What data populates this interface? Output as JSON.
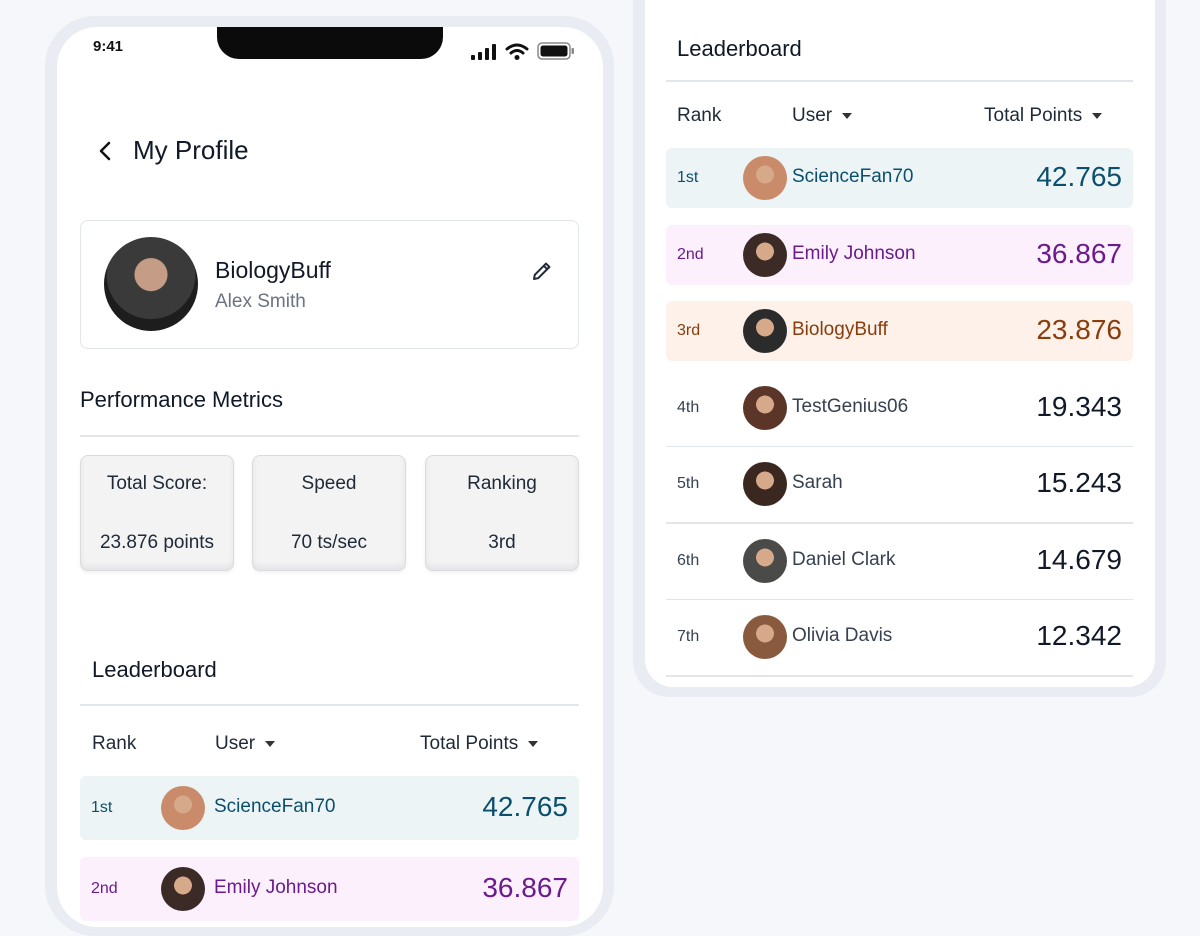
{
  "status_bar": {
    "time": "9:41"
  },
  "header": {
    "title": "My Profile"
  },
  "profile": {
    "username": "BiologyBuff",
    "full_name": "Alex Smith"
  },
  "metrics": {
    "title": "Performance Metrics",
    "items": [
      {
        "label": "Total Score:",
        "value": "23.876 points"
      },
      {
        "label": "Speed",
        "value": "70 ts/sec"
      },
      {
        "label": "Ranking",
        "value": "3rd"
      }
    ]
  },
  "leaderboard": {
    "title": "Leaderboard",
    "columns": {
      "rank": "Rank",
      "user": "User",
      "points": "Total Points"
    },
    "rows": [
      {
        "rank": "1st",
        "user": "ScienceFan70",
        "points": "42.765",
        "color": "#0b4f6c",
        "bg": "#edf4f6",
        "avatar": "#c98b6a"
      },
      {
        "rank": "2nd",
        "user": "Emily Johnson",
        "points": "36.867",
        "color": "#6b1b8c",
        "bg": "#fcf0fd",
        "avatar": "#3b2a26"
      },
      {
        "rank": "3rd",
        "user": "BiologyBuff",
        "points": "23.876",
        "color": "#8a3c0c",
        "bg": "#fdf1ea",
        "avatar": "#2b2b2b"
      },
      {
        "rank": "4th",
        "user": "TestGenius06",
        "points": "19.343",
        "color": "#374151",
        "bg": "#ffffff",
        "avatar": "#5b3527"
      },
      {
        "rank": "5th",
        "user": "Sarah",
        "points": "15.243",
        "color": "#374151",
        "bg": "#ffffff",
        "avatar": "#3a2720"
      },
      {
        "rank": "6th",
        "user": "Daniel Clark",
        "points": "14.679",
        "color": "#374151",
        "bg": "#ffffff",
        "avatar": "#4a4a48"
      },
      {
        "rank": "7th",
        "user": "Olivia Davis",
        "points": "12.342",
        "color": "#374151",
        "bg": "#ffffff",
        "avatar": "#8a5a3e"
      }
    ]
  },
  "icons": {
    "back": "chevron-left-icon",
    "edit": "pencil-icon",
    "sort": "caret-down-icon",
    "signal": "cellular-signal-icon",
    "wifi": "wifi-icon",
    "battery": "battery-icon"
  }
}
